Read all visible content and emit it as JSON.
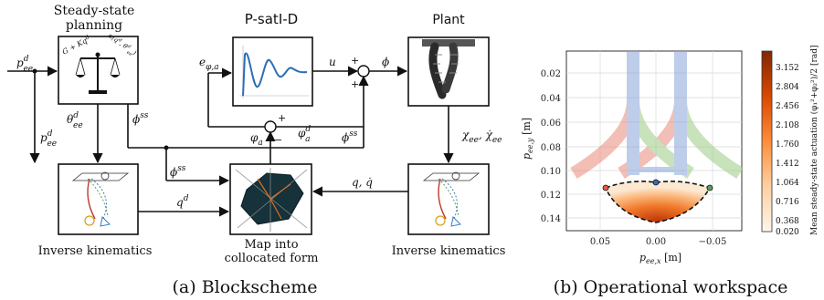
{
  "blockscheme": {
    "caption": "(a) Blockscheme",
    "titles": {
      "steady_state_line1": "Steady-state",
      "steady_state_line2": "planning",
      "controller": "P-satI-D",
      "plant": "Plant"
    },
    "bottom_labels": {
      "ik_left": "Inverse kinematics",
      "map_line1": "Map into",
      "map_line2": "collocated form",
      "ik_right": "Inverse kinematics"
    },
    "signals": {
      "p_ee_d_in": "p",
      "p_ee_d_in_sup": "d",
      "p_ee_d_in_sub": "ee",
      "theta_ee_d": "θ",
      "theta_ee_d_sup": "d",
      "theta_ee_d_sub": "ee",
      "phi_ss_1": "ϕ",
      "phi_ss_1_sup": "ss",
      "phi_ss_2": "ϕ",
      "phi_ss_2_sup": "ss",
      "phi_ss_3": "ϕ",
      "phi_ss_3_sup": "ss",
      "p_ee_d_2": "p",
      "p_ee_d_2_sup": "d",
      "p_ee_d_2_sub": "ee",
      "e_phi_a": "e",
      "e_phi_a_sub": "φ,a",
      "u": "u",
      "phi": "ϕ",
      "varphi_a": "φ",
      "varphi_a_sub": "a",
      "varphi_a_d": "φ",
      "varphi_a_d_sup": "d",
      "varphi_a_d_sub": "a",
      "chi_ee": "χ",
      "chi_ee_sub": "ee",
      "chi_dot": ", χ̇",
      "chi_dot_sub": "ee",
      "q_d": "q",
      "q_d_sup": "d",
      "q_qdot": "q, q̇"
    },
    "signs": {
      "plus_top": "+",
      "plus_bottom": "+",
      "plus_fb": "+",
      "minus_fb": "−"
    },
    "balance_text": {
      "left": "G + Kq",
      "left_sup": "d",
      "right": "α(q",
      "right_sup": "d",
      "right_tail": ", θ",
      "right_sup2": "d",
      "right_sub2": "ee",
      "right_close": ")"
    }
  },
  "workspace": {
    "caption": "(b) Operational workspace",
    "xlabel": "p",
    "xlabel_sub": "ee,x",
    "xlabel_unit": " [m]",
    "ylabel": "p",
    "ylabel_sub": "ee,y",
    "ylabel_unit": " [m]",
    "xticks": [
      "0.05",
      "0.00",
      "−0.05"
    ],
    "yticks": [
      "0.02",
      "0.04",
      "0.06",
      "0.08",
      "0.10",
      "0.12",
      "0.14"
    ],
    "colorbar_label": "Mean steady-state actuation",
    "colorbar_fraction": "(φ₁²+φ₂²)/2",
    "colorbar_unit": "[rad]",
    "colorbar_ticks": [
      "3.152",
      "2.804",
      "2.456",
      "2.108",
      "1.760",
      "1.412",
      "1.064",
      "0.716",
      "0.368",
      "0.020"
    ],
    "colors": {
      "high": "#7a1d04",
      "mid": "#f07a2a",
      "low": "#fff5eb",
      "arm_red": "#e88a7a",
      "arm_blue": "#8aa6d8",
      "arm_green": "#9ccc84"
    }
  }
}
